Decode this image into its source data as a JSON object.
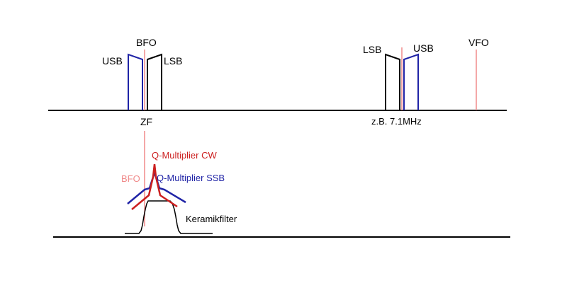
{
  "labels": {
    "bfo_top": "BFO",
    "usb_left": "USB",
    "lsb_left": "LSB",
    "zf": "ZF",
    "lsb_right": "LSB",
    "usb_right": "USB",
    "vfo": "VFO",
    "freq": "z.B. 7.1MHz",
    "q_cw": "Q-Multiplier CW",
    "bfo_lower": "BFO",
    "q_ssb": "Q-Multiplier SSB",
    "keramik": "Keramikfilter"
  },
  "colors": {
    "axis": "#000000",
    "usb": "#1f23a6",
    "lsb": "#000000",
    "bfo": "#f08a8a",
    "q_cw": "#cc1f1f",
    "q_ssb": "#1f23a6",
    "keramik": "#000000"
  }
}
